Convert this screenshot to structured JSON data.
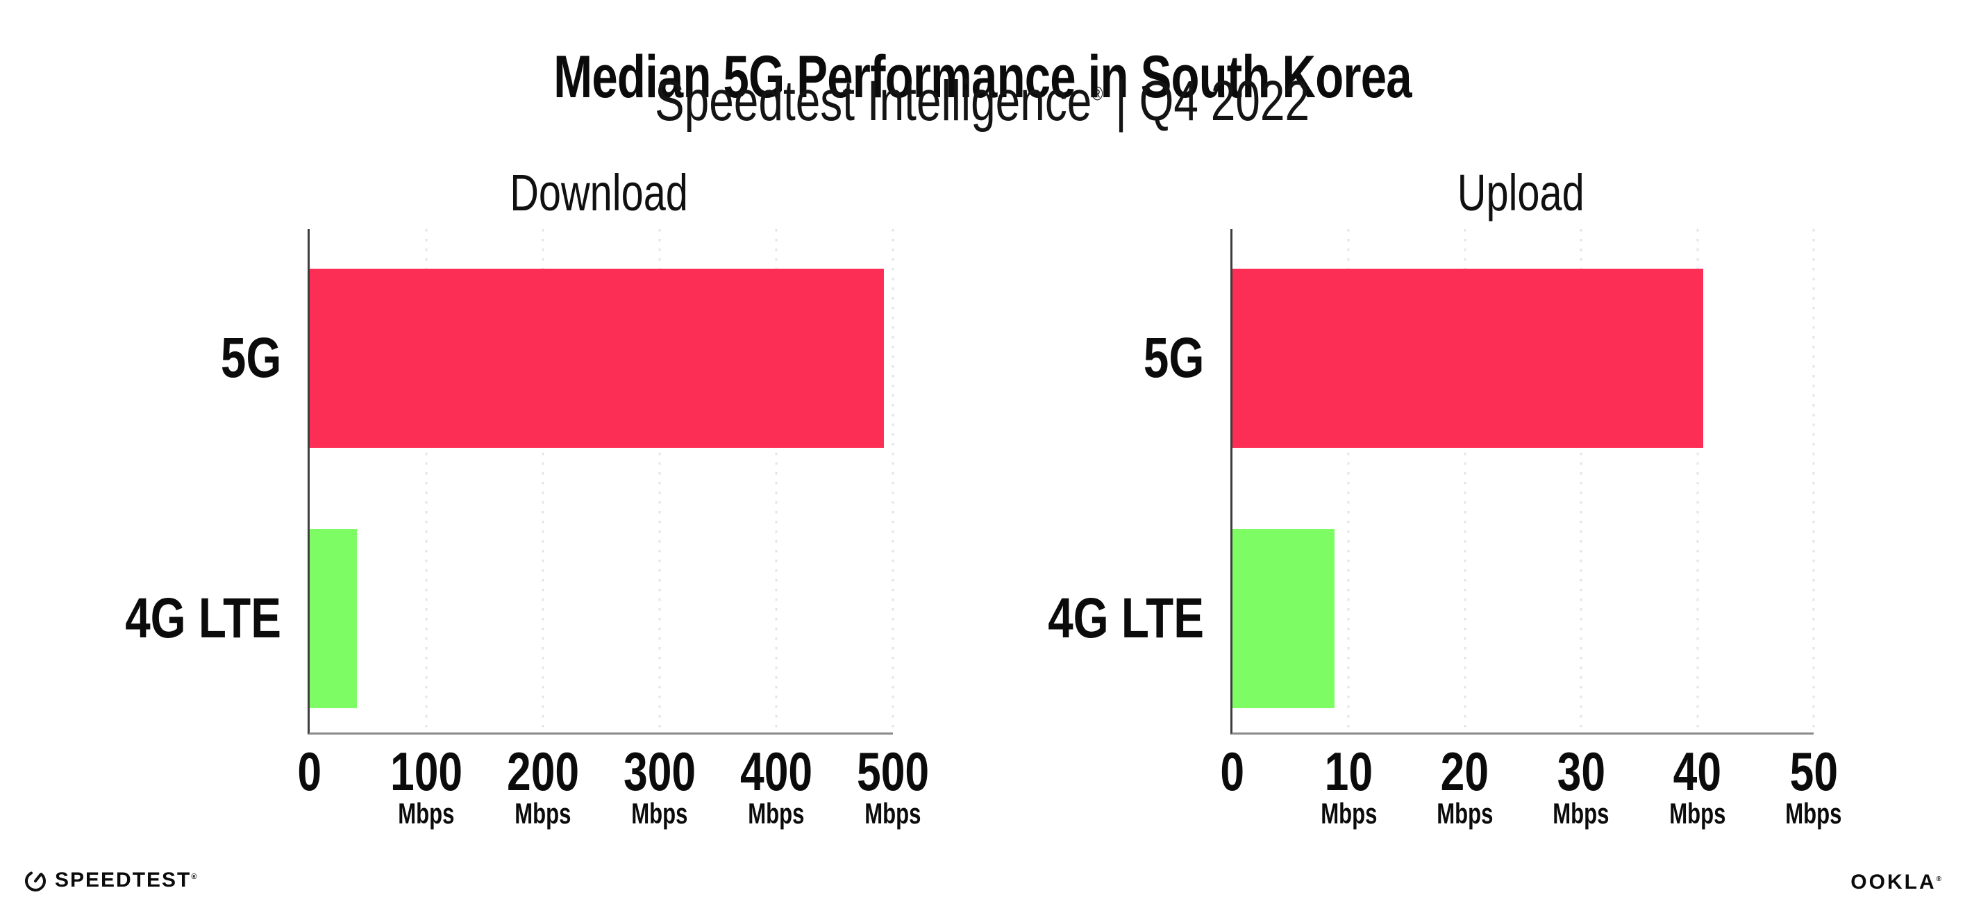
{
  "header": {
    "title": "Median 5G Performance in South Korea",
    "subtitle_brand": "Speedtest Intelligence",
    "subtitle_registered": "®",
    "subtitle_suffix": " | Q4 2022"
  },
  "chart_data": [
    {
      "type": "bar",
      "orientation": "horizontal",
      "title": "Download",
      "categories": [
        "5G",
        "4G LTE"
      ],
      "values": [
        492,
        40.5
      ],
      "unit": "Mbps",
      "xlim": [
        0,
        500
      ],
      "xticks": [
        0,
        100,
        200,
        300,
        400,
        500
      ],
      "bar_colors": [
        "#FC2E56",
        "#7EFC63"
      ],
      "gridlines": "vertical-dotted",
      "legend": "none"
    },
    {
      "type": "bar",
      "orientation": "horizontal",
      "title": "Upload",
      "categories": [
        "5G",
        "4G LTE"
      ],
      "values": [
        40.5,
        8.8
      ],
      "unit": "Mbps",
      "xlim": [
        0,
        50
      ],
      "xticks": [
        0,
        10,
        20,
        30,
        40,
        50
      ],
      "bar_colors": [
        "#FC2E56",
        "#7EFC63"
      ],
      "gridlines": "vertical-dotted",
      "legend": "none"
    }
  ],
  "footer": {
    "speedtest_label": "SPEEDTEST",
    "speedtest_registered": "®",
    "ookla_label": "OOKLA",
    "ookla_registered": "®"
  },
  "colors": {
    "bar_5g": "#FC2E56",
    "bar_4g_lte": "#7EFC63",
    "gridline": "#E3E3EC",
    "axis_line": "#8A8A8A",
    "spine_line": "#3D3D3D",
    "text": "#0B0B0B",
    "background": "#FFFFFF"
  }
}
